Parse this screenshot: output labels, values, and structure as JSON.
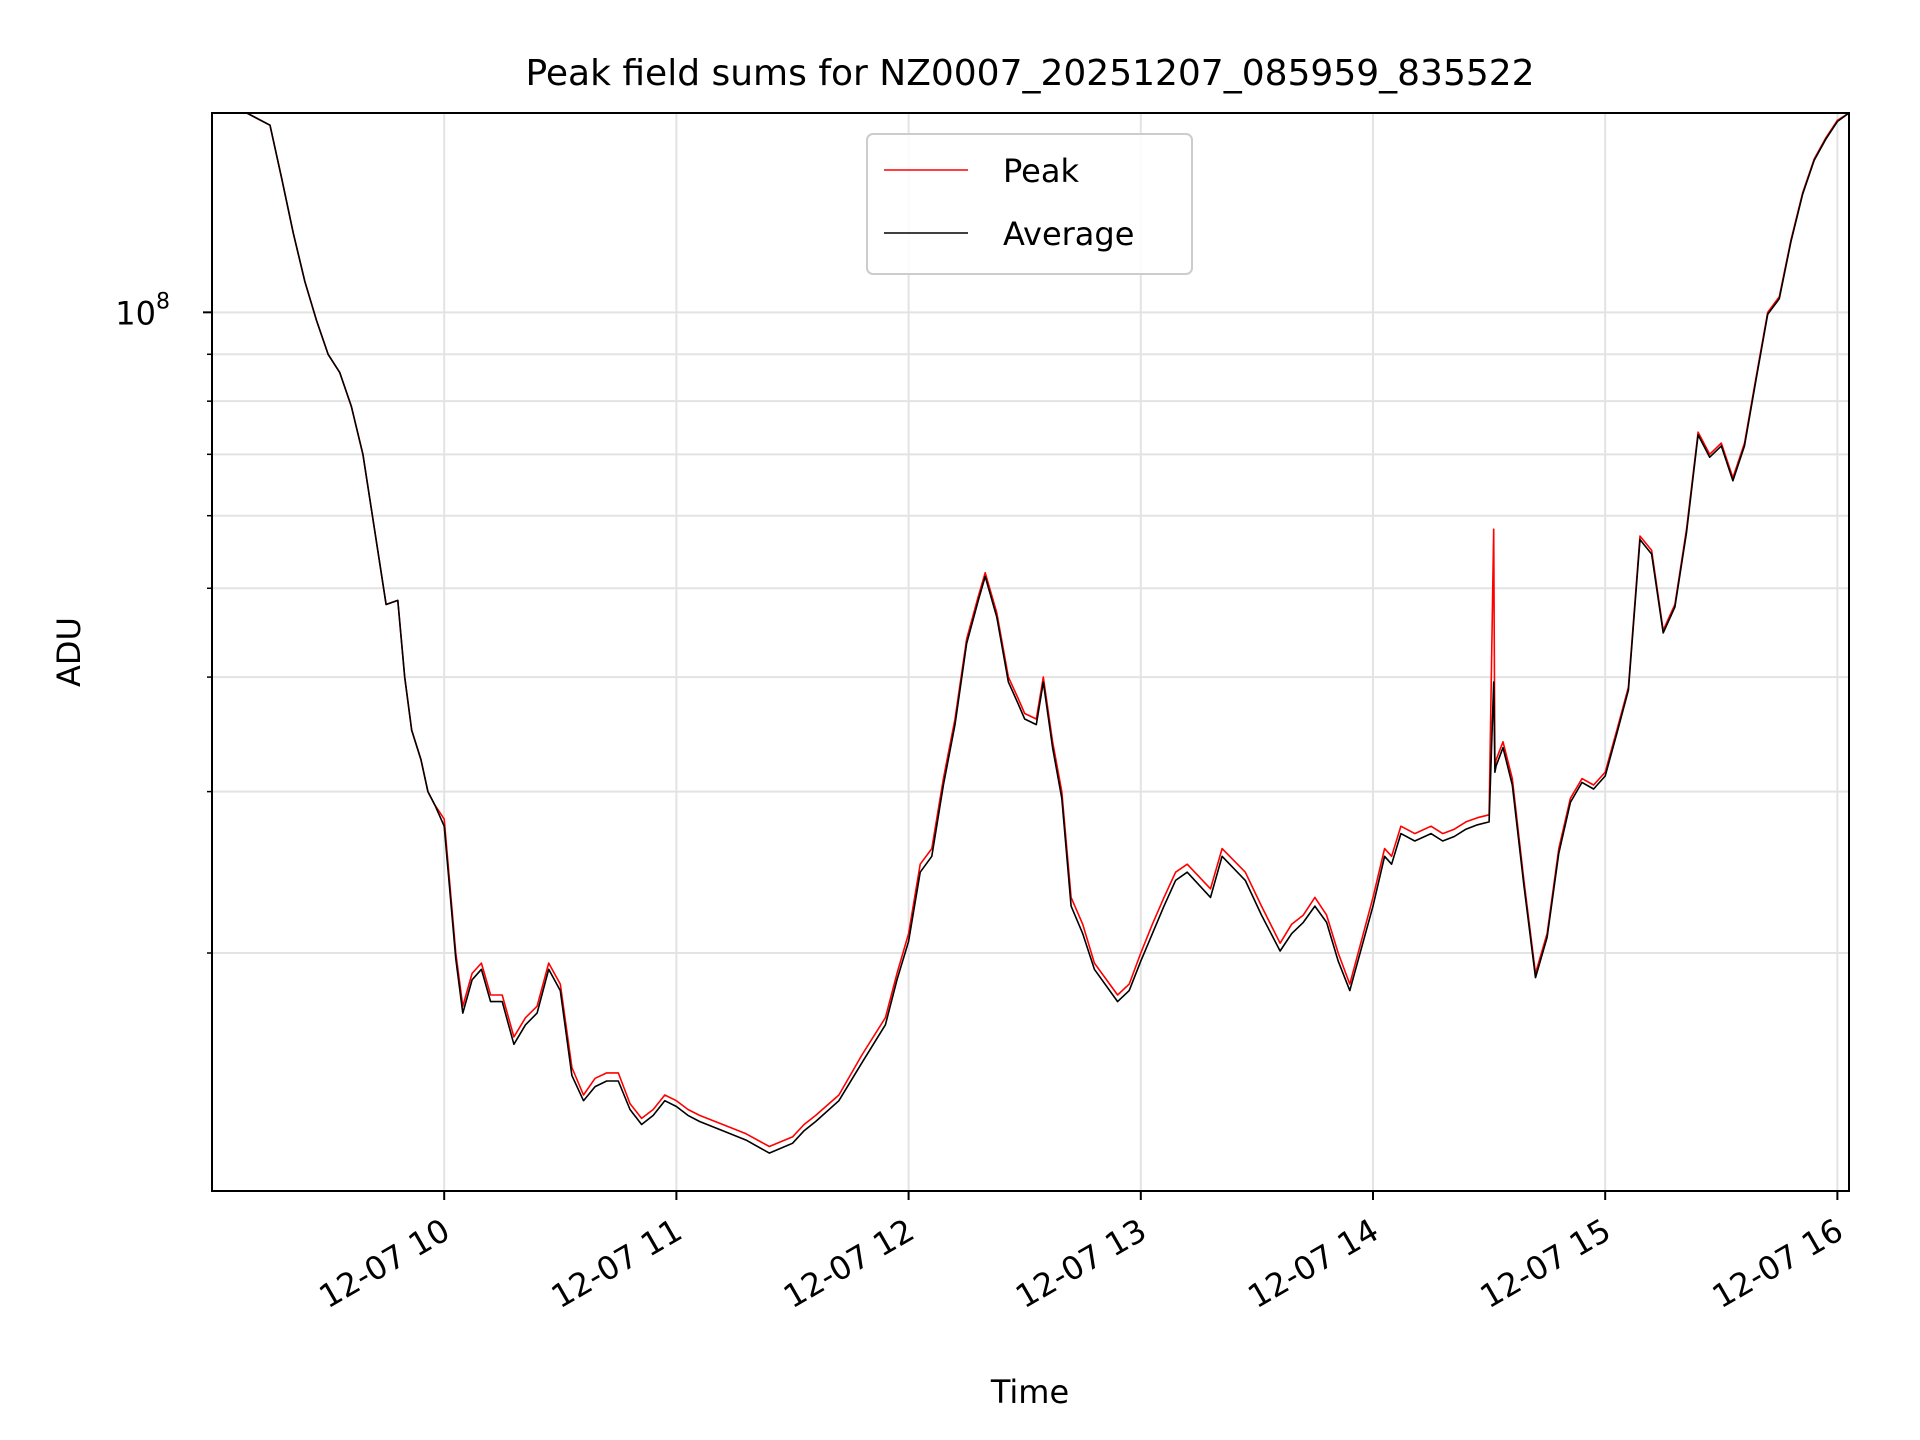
{
  "chart_data": {
    "type": "line",
    "title": "Peak field sums for NZ0007_20251207_085959_835522",
    "xlabel": "Time",
    "ylabel": "ADU",
    "yscale": "log",
    "grid": true,
    "legend_position": "top-center",
    "x_unit": "hours since 12-07 00:00",
    "xlim": [
      9.0,
      16.05
    ],
    "ylim": [
      11000000,
      165000000
    ],
    "x_ticks": [
      {
        "value": 10,
        "label": "12-07 10"
      },
      {
        "value": 11,
        "label": "12-07 11"
      },
      {
        "value": 12,
        "label": "12-07 12"
      },
      {
        "value": 13,
        "label": "12-07 13"
      },
      {
        "value": 14,
        "label": "12-07 14"
      },
      {
        "value": 15,
        "label": "12-07 15"
      },
      {
        "value": 16,
        "label": "12-07 16"
      }
    ],
    "y_ticks": [
      {
        "value": 100000000,
        "base": "10",
        "exp": "8"
      }
    ],
    "y_minor_ticks": [
      20000000,
      30000000,
      40000000,
      50000000,
      60000000,
      70000000,
      80000000,
      90000000
    ],
    "series": [
      {
        "name": "Peak",
        "color": "#ff0000",
        "x": [
          9.0,
          9.15,
          9.25,
          9.3,
          9.35,
          9.4,
          9.45,
          9.5,
          9.55,
          9.6,
          9.65,
          9.7,
          9.75,
          9.8,
          9.83,
          9.86,
          9.9,
          9.93,
          9.96,
          10.0,
          10.05,
          10.08,
          10.12,
          10.16,
          10.2,
          10.25,
          10.3,
          10.35,
          10.4,
          10.45,
          10.5,
          10.55,
          10.6,
          10.65,
          10.7,
          10.75,
          10.8,
          10.85,
          10.9,
          10.95,
          11.0,
          11.05,
          11.1,
          11.2,
          11.3,
          11.4,
          11.5,
          11.55,
          11.6,
          11.7,
          11.8,
          11.9,
          11.95,
          12.0,
          12.05,
          12.1,
          12.15,
          12.2,
          12.25,
          12.3,
          12.33,
          12.38,
          12.43,
          12.47,
          12.5,
          12.55,
          12.58,
          12.62,
          12.66,
          12.7,
          12.75,
          12.8,
          12.9,
          12.95,
          13.0,
          13.05,
          13.1,
          13.15,
          13.2,
          13.3,
          13.35,
          13.45,
          13.52,
          13.6,
          13.65,
          13.7,
          13.75,
          13.8,
          13.85,
          13.9,
          14.0,
          14.05,
          14.08,
          14.12,
          14.18,
          14.25,
          14.3,
          14.35,
          14.4,
          14.45,
          14.5,
          14.52,
          14.525,
          14.53,
          14.56,
          14.6,
          14.65,
          14.7,
          14.75,
          14.8,
          14.85,
          14.9,
          14.95,
          15.0,
          15.05,
          15.1,
          15.15,
          15.2,
          15.25,
          15.3,
          15.35,
          15.4,
          15.45,
          15.5,
          15.55,
          15.6,
          15.65,
          15.7,
          15.75,
          15.8,
          15.85,
          15.9,
          15.95,
          16.0,
          16.05
        ],
        "values": [
          165000000,
          165000000,
          160000000,
          140000000,
          122000000,
          108000000,
          98000000,
          90000000,
          86000000,
          79000000,
          70000000,
          58000000,
          48000000,
          48500000,
          40000000,
          35000000,
          32500000,
          30000000,
          29000000,
          28000000,
          20000000,
          17500000,
          19000000,
          19500000,
          18000000,
          18000000,
          16200000,
          17000000,
          17500000,
          19500000,
          18500000,
          15000000,
          14000000,
          14600000,
          14800000,
          14800000,
          13700000,
          13200000,
          13500000,
          14000000,
          13800000,
          13500000,
          13300000,
          13000000,
          12700000,
          12300000,
          12600000,
          13000000,
          13300000,
          14000000,
          15500000,
          17000000,
          19000000,
          21000000,
          25000000,
          26000000,
          31000000,
          36000000,
          44000000,
          49000000,
          52000000,
          47000000,
          40000000,
          38000000,
          36500000,
          36000000,
          40000000,
          34000000,
          30000000,
          23000000,
          21500000,
          19500000,
          18000000,
          18500000,
          20000000,
          21500000,
          23000000,
          24500000,
          25000000,
          23500000,
          26000000,
          24500000,
          22500000,
          20500000,
          21500000,
          22000000,
          23000000,
          22000000,
          20000000,
          18500000,
          23000000,
          26000000,
          25500000,
          27500000,
          27000000,
          27500000,
          27000000,
          27300000,
          27800000,
          28100000,
          28300000,
          58000000,
          32000000,
          32500000,
          34000000,
          31000000,
          24000000,
          19000000,
          21000000,
          26000000,
          29500000,
          31000000,
          30500000,
          31500000,
          35000000,
          39000000,
          57000000,
          55000000,
          45000000,
          48000000,
          58000000,
          74000000,
          70000000,
          72000000,
          66000000,
          72000000,
          85000000,
          100000000,
          104000000,
          120000000,
          135000000,
          147000000,
          155000000,
          162000000,
          165000000
        ]
      },
      {
        "name": "Average",
        "color": "#000000",
        "x": [
          9.0,
          9.15,
          9.25,
          9.3,
          9.35,
          9.4,
          9.45,
          9.5,
          9.55,
          9.6,
          9.65,
          9.7,
          9.75,
          9.8,
          9.83,
          9.86,
          9.9,
          9.93,
          9.96,
          10.0,
          10.05,
          10.08,
          10.12,
          10.16,
          10.2,
          10.25,
          10.3,
          10.35,
          10.4,
          10.45,
          10.5,
          10.55,
          10.6,
          10.65,
          10.7,
          10.75,
          10.8,
          10.85,
          10.9,
          10.95,
          11.0,
          11.05,
          11.1,
          11.2,
          11.3,
          11.4,
          11.5,
          11.55,
          11.6,
          11.7,
          11.8,
          11.9,
          11.95,
          12.0,
          12.05,
          12.1,
          12.15,
          12.2,
          12.25,
          12.3,
          12.33,
          12.38,
          12.43,
          12.47,
          12.5,
          12.55,
          12.58,
          12.62,
          12.66,
          12.7,
          12.75,
          12.8,
          12.9,
          12.95,
          13.0,
          13.05,
          13.1,
          13.15,
          13.2,
          13.3,
          13.35,
          13.45,
          13.52,
          13.6,
          13.65,
          13.7,
          13.75,
          13.8,
          13.85,
          13.9,
          14.0,
          14.05,
          14.08,
          14.12,
          14.18,
          14.25,
          14.3,
          14.35,
          14.4,
          14.45,
          14.5,
          14.52,
          14.525,
          14.53,
          14.56,
          14.6,
          14.65,
          14.7,
          14.75,
          14.8,
          14.85,
          14.9,
          14.95,
          15.0,
          15.05,
          15.1,
          15.15,
          15.2,
          15.25,
          15.3,
          15.35,
          15.4,
          15.45,
          15.5,
          15.55,
          15.6,
          15.65,
          15.7,
          15.75,
          15.8,
          15.85,
          15.9,
          15.95,
          16.0,
          16.05
        ],
        "values": [
          165000000,
          165000000,
          160000000,
          140000000,
          122000000,
          108000000,
          98000000,
          90000000,
          86000000,
          79000000,
          70000000,
          58000000,
          48000000,
          48500000,
          40000000,
          35000000,
          32500000,
          30000000,
          29000000,
          27500000,
          19700000,
          17200000,
          18700000,
          19200000,
          17700000,
          17700000,
          15900000,
          16700000,
          17200000,
          19200000,
          18200000,
          14700000,
          13800000,
          14300000,
          14500000,
          14500000,
          13500000,
          13000000,
          13300000,
          13800000,
          13600000,
          13300000,
          13100000,
          12800000,
          12500000,
          12100000,
          12400000,
          12800000,
          13100000,
          13800000,
          15200000,
          16700000,
          18700000,
          20600000,
          24500000,
          25500000,
          30500000,
          35500000,
          43500000,
          48500000,
          51500000,
          46500000,
          39500000,
          37500000,
          36000000,
          35500000,
          39500000,
          33500000,
          29500000,
          22500000,
          21000000,
          19200000,
          17700000,
          18200000,
          19600000,
          21000000,
          22500000,
          24000000,
          24500000,
          23000000,
          25500000,
          24000000,
          22000000,
          20100000,
          21000000,
          21600000,
          22500000,
          21600000,
          19600000,
          18200000,
          22500000,
          25500000,
          25000000,
          27000000,
          26500000,
          27000000,
          26500000,
          26800000,
          27300000,
          27600000,
          27800000,
          39500000,
          31500000,
          32000000,
          33500000,
          30500000,
          23700000,
          18800000,
          20800000,
          25700000,
          29200000,
          30700000,
          30200000,
          31200000,
          34700000,
          38700000,
          56500000,
          54500000,
          44700000,
          47700000,
          57500000,
          73500000,
          69500000,
          71500000,
          65500000,
          71500000,
          84500000,
          99500000,
          103500000,
          119500000,
          134500000,
          146500000,
          154500000,
          161500000,
          165000000
        ]
      }
    ]
  }
}
